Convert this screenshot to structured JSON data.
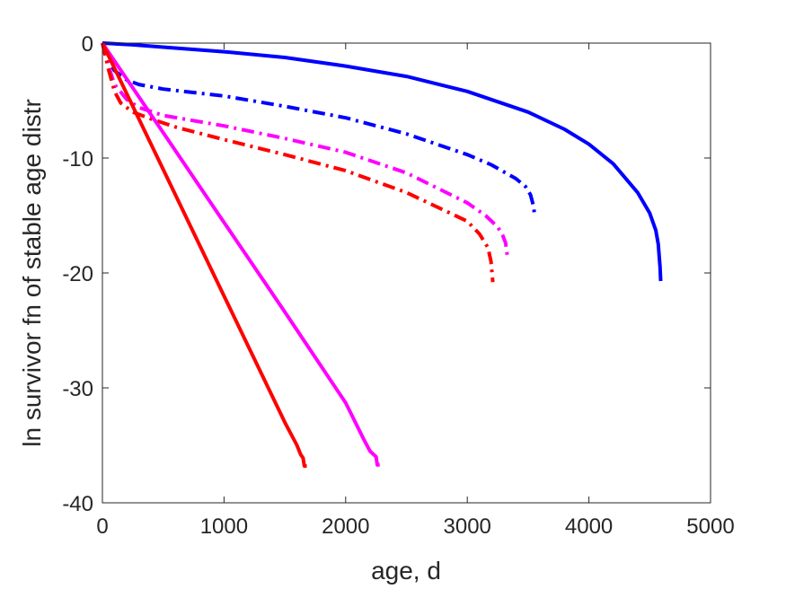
{
  "chart_data": {
    "type": "line",
    "title": "",
    "xlabel": "age, d",
    "ylabel": "ln survivor fn of stable age distr",
    "xlim": [
      0,
      5000
    ],
    "ylim": [
      -40,
      0
    ],
    "xticks": [
      0,
      1000,
      2000,
      3000,
      4000,
      5000
    ],
    "yticks": [
      -40,
      -30,
      -20,
      -10,
      0
    ],
    "xtick_labels": [
      "0",
      "1000",
      "2000",
      "3000",
      "4000",
      "5000"
    ],
    "ytick_labels": [
      "-40",
      "-30",
      "-20",
      "-10",
      "0"
    ],
    "grid": false,
    "box": true,
    "series": [
      {
        "color": "#0000ff",
        "style": "solid",
        "x": [
          0,
          250,
          500,
          1000,
          1500,
          2000,
          2500,
          3000,
          3500,
          3800,
          4000,
          4200,
          4400,
          4500,
          4550,
          4570,
          4585,
          4590
        ],
        "y": [
          0,
          -0.15,
          -0.35,
          -0.75,
          -1.25,
          -2.0,
          -2.9,
          -4.2,
          -6.0,
          -7.5,
          -8.8,
          -10.5,
          -13.0,
          -14.8,
          -16.3,
          -17.5,
          -19.5,
          -20.7
        ]
      },
      {
        "color": "#0000ff",
        "style": "dashdot",
        "x": [
          0,
          50,
          100,
          200,
          300,
          500,
          1000,
          1500,
          2000,
          2500,
          3000,
          3200,
          3400,
          3480,
          3520,
          3545,
          3555
        ],
        "y": [
          0,
          -1.5,
          -2.4,
          -3.2,
          -3.6,
          -4.0,
          -4.6,
          -5.5,
          -6.5,
          -7.9,
          -9.7,
          -10.6,
          -11.8,
          -12.5,
          -13.2,
          -14.2,
          -15.1
        ]
      },
      {
        "color": "#ff00ff",
        "style": "dashdot",
        "x": [
          0,
          50,
          100,
          200,
          300,
          500,
          1000,
          1500,
          2000,
          2500,
          3000,
          3150,
          3250,
          3290,
          3315,
          3330
        ],
        "y": [
          0,
          -2.0,
          -3.6,
          -4.9,
          -5.6,
          -6.3,
          -7.2,
          -8.3,
          -9.5,
          -11.3,
          -13.9,
          -15.0,
          -16.0,
          -16.7,
          -17.4,
          -18.6
        ]
      },
      {
        "color": "#ff0000",
        "style": "dashdot",
        "x": [
          0,
          50,
          100,
          150,
          250,
          400,
          600,
          1000,
          1500,
          2000,
          2500,
          3000,
          3100,
          3170,
          3195,
          3210
        ],
        "y": [
          0,
          -2.3,
          -4.2,
          -5.2,
          -6.0,
          -6.6,
          -7.3,
          -8.4,
          -9.7,
          -11.1,
          -13.0,
          -15.5,
          -16.6,
          -17.8,
          -19.0,
          -20.8
        ]
      },
      {
        "color": "#ff00ff",
        "style": "solid",
        "x": [
          0,
          500,
          1000,
          1500,
          2000,
          2150,
          2200,
          2230,
          2250,
          2260,
          2280
        ],
        "y": [
          0,
          -7.8,
          -15.6,
          -23.4,
          -31.3,
          -34.5,
          -35.5,
          -35.8,
          -36.0,
          -36.7,
          -36.7
        ]
      },
      {
        "color": "#ff0000",
        "style": "solid",
        "x": [
          0,
          500,
          1000,
          1500,
          1600,
          1630,
          1650,
          1660,
          1680
        ],
        "y": [
          0,
          -11.0,
          -22.0,
          -33.0,
          -35.0,
          -35.8,
          -36.1,
          -36.8,
          -36.8
        ]
      }
    ]
  }
}
